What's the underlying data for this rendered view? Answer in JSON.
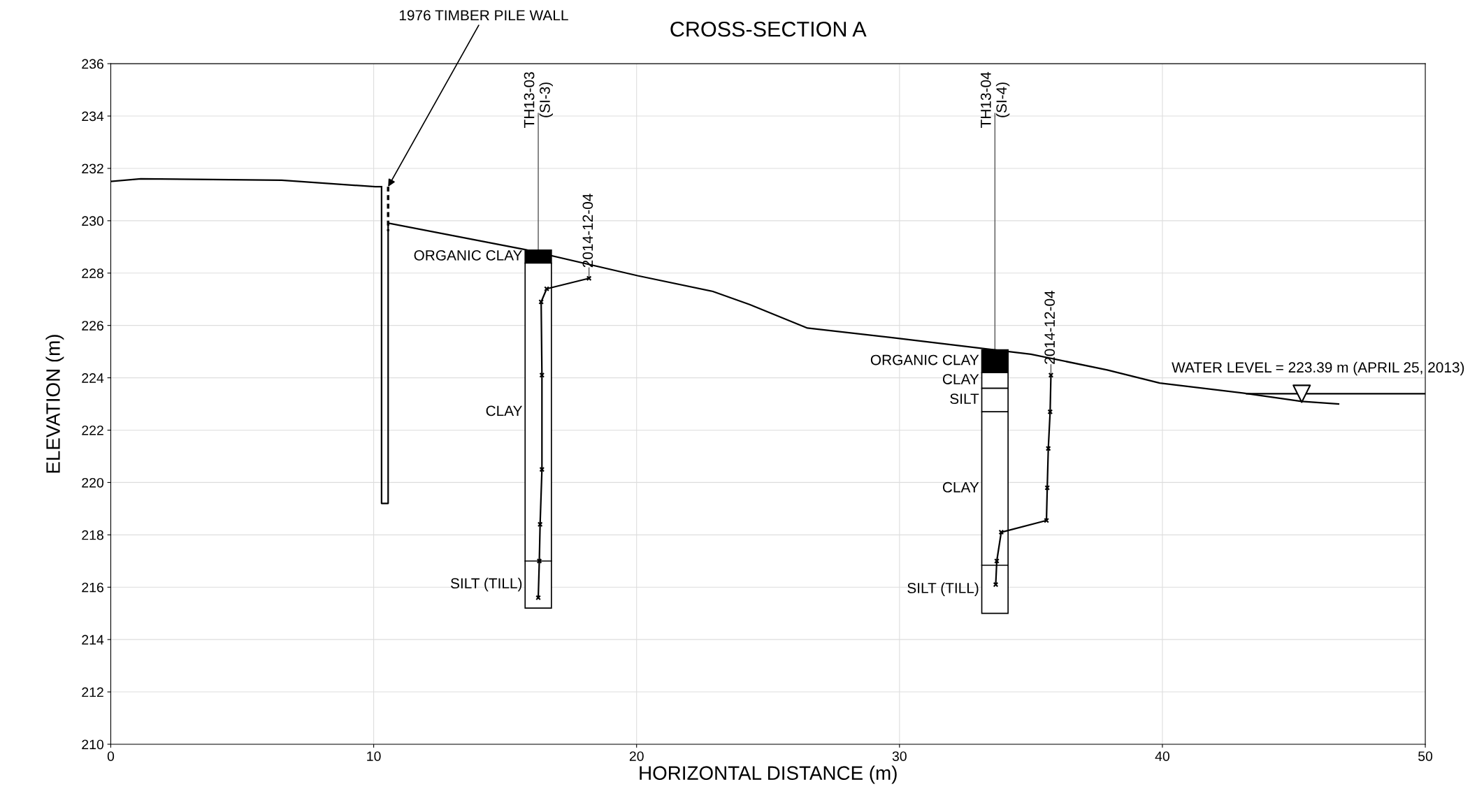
{
  "chart_data": {
    "type": "line",
    "title": "CROSS-SECTION A",
    "xlabel": "HORIZONTAL DISTANCE (m)",
    "ylabel": "ELEVATION (m)",
    "xlim": [
      0,
      50
    ],
    "ylim": [
      210,
      236
    ],
    "xticks": [
      0,
      10,
      20,
      30,
      40,
      50
    ],
    "yticks": [
      210,
      212,
      214,
      216,
      218,
      220,
      222,
      224,
      226,
      228,
      230,
      232,
      234,
      236
    ],
    "grid": true,
    "legend": false,
    "series": [
      {
        "color": "#000000",
        "x": [
          0,
          1.14,
          6.5,
          10.06,
          10.3
        ],
        "values": [
          231.5,
          231.6,
          231.55,
          231.3,
          231.3
        ]
      },
      {
        "type": "line",
        "color": "#000000",
        "x": [
          10.6,
          15.76,
          20.04,
          22.9,
          24.3,
          26.5,
          30.0,
          35.0,
          37.9,
          39.9,
          43.2,
          45.3,
          46.7
        ],
        "values": [
          229.9,
          228.9,
          227.9,
          227.3,
          226.8,
          225.9,
          225.5,
          224.9,
          224.3,
          223.8,
          223.4,
          223.1,
          223.0
        ]
      },
      {
        "color": "#000000",
        "x": [
          10.3,
          10.3,
          10.55,
          10.55
        ],
        "values": [
          231.3,
          219.2,
          219.2,
          229.9
        ]
      },
      {
        "color": "#000000",
        "line_style": "dashed",
        "x": [
          10.55,
          10.55
        ],
        "values": [
          231.3,
          229.6
        ]
      },
      {
        "type": "bar",
        "name": "ORGANIC CLAY",
        "color": "#000000",
        "x": [
          16.26
        ],
        "values": [
          0.5
        ],
        "base": [
          228.38
        ]
      },
      {
        "type": "bar",
        "name": "CLAY",
        "color": "#ffffff",
        "x": [
          16.26
        ],
        "values": [
          11.38
        ],
        "base": [
          217.0
        ]
      },
      {
        "type": "bar",
        "name": "SILT (TILL)",
        "color": "#ffffff",
        "x": [
          16.26
        ],
        "values": [
          1.8
        ],
        "base": [
          215.2
        ]
      },
      {
        "type": "bar",
        "name": "ORGANIC CLAY",
        "color": "#000000",
        "x": [
          33.63
        ],
        "values": [
          0.87
        ],
        "base": [
          224.2
        ]
      },
      {
        "type": "bar",
        "name": "CLAY",
        "color": "#ffffff",
        "x": [
          33.63
        ],
        "values": [
          0.6
        ],
        "base": [
          223.6
        ]
      },
      {
        "type": "bar",
        "name": "SILT",
        "color": "#ffffff",
        "x": [
          33.63
        ],
        "values": [
          0.9
        ],
        "base": [
          222.7
        ]
      },
      {
        "type": "bar",
        "name": "CLAY",
        "color": "#ffffff",
        "x": [
          33.63
        ],
        "values": [
          5.86
        ],
        "base": [
          216.84
        ]
      },
      {
        "type": "bar",
        "name": "SILT (TILL)",
        "color": "#ffffff",
        "x": [
          33.63
        ],
        "values": [
          1.84
        ],
        "base": [
          215.0
        ]
      },
      {
        "type": "line",
        "color": "#000000",
        "marker": "cross",
        "x": [
          18.19,
          16.58,
          16.37,
          16.4,
          16.4,
          16.33,
          16.3,
          16.26
        ],
        "values": [
          227.8,
          227.4,
          226.9,
          224.1,
          220.5,
          218.4,
          217.0,
          215.6
        ]
      },
      {
        "type": "line",
        "color": "#000000",
        "marker": "cross",
        "x": [
          35.76,
          35.73,
          35.66,
          35.62,
          35.59,
          33.87,
          33.7,
          33.66
        ],
        "values": [
          224.1,
          222.7,
          221.3,
          219.8,
          218.55,
          218.1,
          217.0,
          216.1
        ]
      },
      {
        "type": "line",
        "color": "#000000",
        "x": [
          43.2,
          50
        ],
        "values": [
          223.39,
          223.39
        ]
      },
      {
        "type": "scatter",
        "color": "#ffffff",
        "marker": "triangle",
        "x": [
          45.3
        ],
        "values": [
          223.39
        ]
      }
    ],
    "annotations": [
      {
        "text": "1976 TIMBER PILE WALL",
        "x": 10.55,
        "y": 231.3
      },
      {
        "text": "TH13-03\n(SI-3)",
        "x": 16.26,
        "y": 228.88
      },
      {
        "text": "2014-12-04",
        "x": 18.19,
        "y": 227.8
      },
      {
        "text": "TH13-04\n(SI-4)",
        "x": 33.63,
        "y": 225.07
      },
      {
        "text": "2014-12-04",
        "x": 35.76,
        "y": 224.1
      },
      {
        "text": "WATER LEVEL = 223.39 m (APRIL 25, 2013)",
        "x": 45.3,
        "y": 223.39
      }
    ]
  }
}
